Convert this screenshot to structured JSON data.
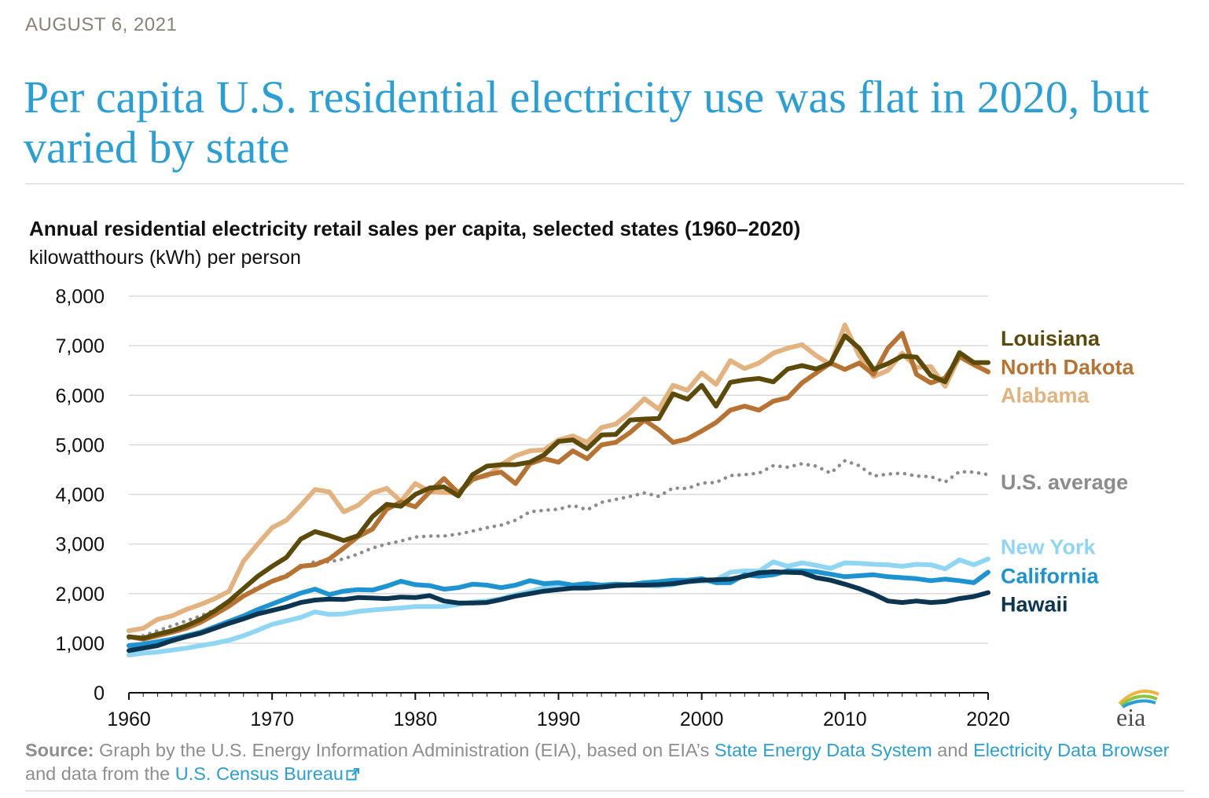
{
  "date": "AUGUST 6, 2021",
  "headline": "Per capita U.S. residential electricity use was flat in 2020, but varied by state",
  "logo": "eia",
  "source": {
    "label": "Source:",
    "text1": " Graph by the U.S. Energy Information Administration (EIA), based on EIA’s ",
    "link1": "State Energy Data System",
    "text2": " and ",
    "link2": "Electricity Data Browser",
    "text3": " and data from the ",
    "link3": "U.S. Census Bureau"
  },
  "colors": {
    "louisiana": "#5c4a0b",
    "north_dakota": "#b87332",
    "alabama": "#e3b27e",
    "us_average": "#8c8c8c",
    "new_york": "#8fd6f5",
    "california": "#1d93d2",
    "hawaii": "#0b3551",
    "headline": "#2a9fd6"
  },
  "chart_data": {
    "type": "line",
    "title": "Annual residential electricity retail sales per capita, selected states (1960–2020)",
    "ylabel": "kilowatthours (kWh) per person",
    "xlim": [
      1960,
      2020
    ],
    "ylim": [
      0,
      8000
    ],
    "x_ticks": [
      1960,
      1970,
      1980,
      1990,
      2000,
      2010,
      2020
    ],
    "y_ticks": [
      0,
      1000,
      2000,
      3000,
      4000,
      5000,
      6000,
      7000,
      8000
    ],
    "y_tick_labels": [
      "0",
      "1,000",
      "2,000",
      "3,000",
      "4,000",
      "5,000",
      "6,000",
      "7,000",
      "8,000"
    ],
    "grid": "horizontal",
    "legend": "right, direct labels",
    "x": [
      1960,
      1961,
      1962,
      1963,
      1964,
      1965,
      1966,
      1967,
      1968,
      1969,
      1970,
      1971,
      1972,
      1973,
      1974,
      1975,
      1976,
      1977,
      1978,
      1979,
      1980,
      1981,
      1982,
      1983,
      1984,
      1985,
      1986,
      1987,
      1988,
      1989,
      1990,
      1991,
      1992,
      1993,
      1994,
      1995,
      1996,
      1997,
      1998,
      1999,
      2000,
      2001,
      2002,
      2003,
      2004,
      2005,
      2006,
      2007,
      2008,
      2009,
      2010,
      2011,
      2012,
      2013,
      2014,
      2015,
      2016,
      2017,
      2018,
      2019,
      2020
    ],
    "series": [
      {
        "name": "Louisiana",
        "key": "louisiana",
        "style": "solid",
        "values": [
          1130,
          1100,
          1180,
          1250,
          1350,
          1480,
          1650,
          1850,
          2100,
          2350,
          2550,
          2730,
          3100,
          3250,
          3170,
          3070,
          3170,
          3550,
          3800,
          3760,
          4000,
          4130,
          4150,
          3970,
          4400,
          4570,
          4600,
          4600,
          4650,
          4800,
          5070,
          5100,
          4920,
          5200,
          5210,
          5500,
          5520,
          5530,
          6030,
          5920,
          6200,
          5780,
          6260,
          6310,
          6340,
          6270,
          6530,
          6600,
          6530,
          6650,
          7200,
          6950,
          6520,
          6640,
          6790,
          6770,
          6400,
          6270,
          6860,
          6660,
          6660
        ]
      },
      {
        "name": "North Dakota",
        "key": "north_dakota",
        "style": "solid",
        "values": [
          1130,
          1080,
          1150,
          1220,
          1300,
          1420,
          1580,
          1750,
          1950,
          2100,
          2250,
          2350,
          2550,
          2580,
          2700,
          2920,
          3150,
          3300,
          3700,
          3850,
          3750,
          4050,
          4320,
          4030,
          4300,
          4400,
          4450,
          4220,
          4620,
          4720,
          4650,
          4880,
          4720,
          5000,
          5050,
          5250,
          5500,
          5300,
          5050,
          5120,
          5280,
          5450,
          5700,
          5780,
          5700,
          5880,
          5950,
          6250,
          6450,
          6650,
          6520,
          6650,
          6420,
          6950,
          7250,
          6420,
          6250,
          6350,
          6780,
          6620,
          6470
        ]
      },
      {
        "name": "Alabama",
        "key": "alabama",
        "style": "solid",
        "values": [
          1250,
          1300,
          1480,
          1550,
          1680,
          1780,
          1900,
          2050,
          2650,
          3000,
          3330,
          3480,
          3780,
          4100,
          4050,
          3650,
          3780,
          4030,
          4120,
          3860,
          4220,
          4060,
          4040,
          4030,
          4330,
          4370,
          4600,
          4780,
          4880,
          4900,
          5100,
          5180,
          5050,
          5350,
          5420,
          5650,
          5930,
          5720,
          6200,
          6100,
          6450,
          6220,
          6700,
          6540,
          6650,
          6850,
          6950,
          7020,
          6800,
          6620,
          7420,
          6800,
          6380,
          6500,
          6850,
          6560,
          6580,
          6180,
          6780,
          6610,
          6480
        ]
      },
      {
        "name": "U.S. average",
        "key": "us_average",
        "style": "dotted",
        "values": [
          1100,
          1150,
          1250,
          1350,
          1450,
          1550,
          1670,
          1780,
          1960,
          2130,
          2260,
          2380,
          2520,
          2650,
          2640,
          2700,
          2800,
          2920,
          3000,
          3060,
          3140,
          3160,
          3160,
          3200,
          3260,
          3330,
          3380,
          3480,
          3650,
          3680,
          3700,
          3780,
          3690,
          3840,
          3900,
          3960,
          4030,
          3960,
          4130,
          4120,
          4230,
          4240,
          4380,
          4400,
          4430,
          4580,
          4550,
          4620,
          4570,
          4430,
          4680,
          4580,
          4370,
          4410,
          4430,
          4370,
          4360,
          4250,
          4460,
          4450,
          4400
        ]
      },
      {
        "name": "New York",
        "key": "new_york",
        "style": "solid",
        "values": [
          760,
          800,
          820,
          860,
          900,
          950,
          1000,
          1060,
          1150,
          1260,
          1380,
          1450,
          1520,
          1630,
          1580,
          1590,
          1640,
          1670,
          1690,
          1710,
          1740,
          1740,
          1740,
          1780,
          1830,
          1850,
          1900,
          1980,
          2040,
          2120,
          2150,
          2160,
          2140,
          2170,
          2170,
          2170,
          2170,
          2150,
          2180,
          2250,
          2250,
          2280,
          2430,
          2460,
          2450,
          2640,
          2550,
          2620,
          2570,
          2510,
          2620,
          2610,
          2590,
          2580,
          2550,
          2590,
          2580,
          2500,
          2680,
          2580,
          2700
        ]
      },
      {
        "name": "California",
        "key": "california",
        "style": "solid",
        "values": [
          950,
          980,
          1030,
          1080,
          1150,
          1220,
          1330,
          1440,
          1550,
          1680,
          1790,
          1900,
          2010,
          2090,
          1980,
          2050,
          2080,
          2070,
          2150,
          2250,
          2180,
          2160,
          2090,
          2120,
          2190,
          2170,
          2120,
          2170,
          2260,
          2200,
          2220,
          2170,
          2200,
          2170,
          2190,
          2180,
          2220,
          2240,
          2270,
          2270,
          2300,
          2220,
          2220,
          2380,
          2350,
          2380,
          2460,
          2460,
          2440,
          2390,
          2340,
          2360,
          2380,
          2340,
          2320,
          2300,
          2260,
          2290,
          2260,
          2220,
          2430
        ]
      },
      {
        "name": "Hawaii",
        "key": "hawaii",
        "style": "solid",
        "values": [
          850,
          900,
          950,
          1050,
          1130,
          1200,
          1300,
          1400,
          1490,
          1590,
          1660,
          1730,
          1820,
          1870,
          1890,
          1880,
          1920,
          1910,
          1900,
          1930,
          1920,
          1960,
          1850,
          1810,
          1810,
          1820,
          1880,
          1950,
          2000,
          2050,
          2080,
          2110,
          2110,
          2130,
          2160,
          2170,
          2170,
          2180,
          2200,
          2240,
          2270,
          2280,
          2290,
          2350,
          2420,
          2440,
          2430,
          2420,
          2320,
          2270,
          2190,
          2100,
          1990,
          1850,
          1820,
          1850,
          1820,
          1840,
          1900,
          1940,
          2020
        ]
      }
    ]
  }
}
